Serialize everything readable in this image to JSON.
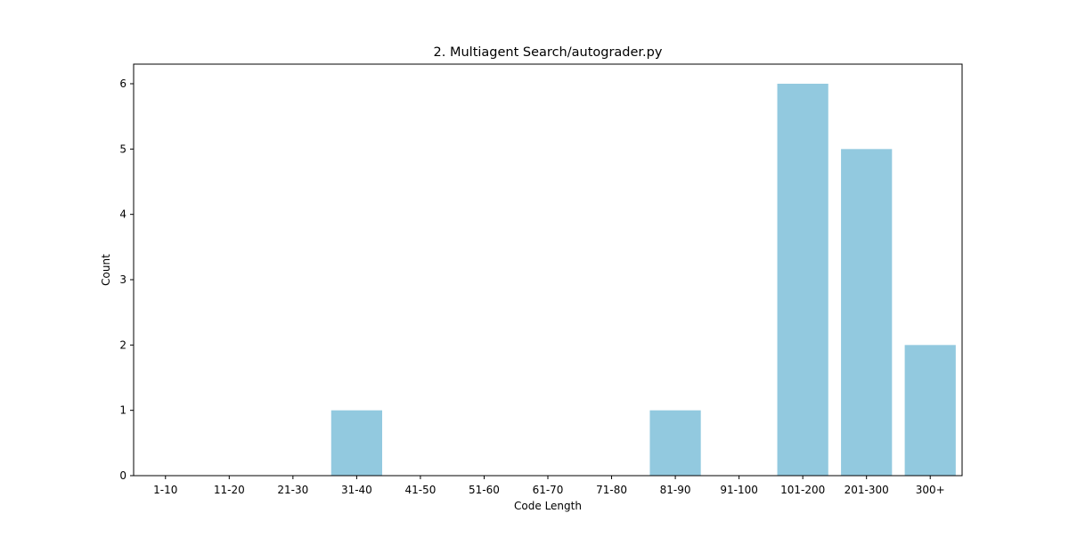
{
  "chart_data": {
    "type": "bar",
    "title": "2. Multiagent Search/autograder.py",
    "xlabel": "Code Length",
    "ylabel": "Count",
    "categories": [
      "1-10",
      "11-20",
      "21-30",
      "31-40",
      "41-50",
      "51-60",
      "61-70",
      "71-80",
      "81-90",
      "91-100",
      "101-200",
      "201-300",
      "300+"
    ],
    "values": [
      0,
      0,
      0,
      1,
      0,
      0,
      0,
      0,
      1,
      0,
      6,
      5,
      2
    ],
    "ylim": [
      0,
      6.3
    ],
    "yticks": [
      0,
      1,
      2,
      3,
      4,
      5,
      6
    ],
    "grid": false,
    "bar_color": "#92c9df"
  }
}
